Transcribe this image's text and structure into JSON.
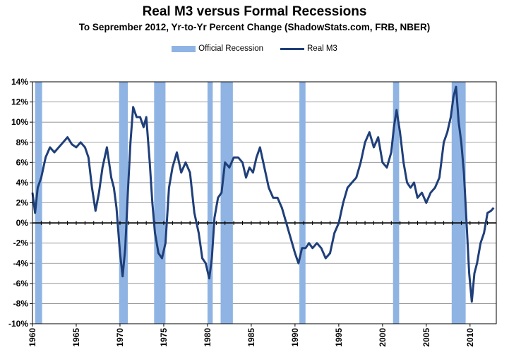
{
  "chart_data": {
    "type": "line",
    "title": "Real M3 versus Formal Recessions",
    "subtitle": "To Seprember 2012, Yr-to-Yr  Percent Change (ShadowStats.com, FRB, NBER)",
    "xlabel": "",
    "ylabel": "",
    "xlim": [
      1960,
      2013
    ],
    "ylim": [
      -10,
      14
    ],
    "y_ticks": [
      14,
      12,
      10,
      8,
      6,
      4,
      2,
      0,
      -2,
      -4,
      -6,
      -8,
      -10
    ],
    "y_tick_labels": [
      "14%",
      "12%",
      "10%",
      "8%",
      "6%",
      "4%",
      "2%",
      "0%",
      "-2%",
      "-4%",
      "-6%",
      "-8%",
      "-10%"
    ],
    "x_ticks": [
      1960,
      1965,
      1970,
      1975,
      1980,
      1985,
      1990,
      1995,
      2000,
      2005,
      2010
    ],
    "x_tick_labels": [
      "1960",
      "1965",
      "1970",
      "1975",
      "1980",
      "1985",
      "1990",
      "1995",
      "2000",
      "2005",
      "2010"
    ],
    "grid": "horizontal",
    "legend_position": "top",
    "legend": [
      "Official Recession",
      "Real M3"
    ],
    "recession_color": "#8fb4e3",
    "line_color": "#1f3f7a",
    "zero_line_color": "#000000",
    "recessions": [
      {
        "start": 1960.3,
        "end": 1961.1
      },
      {
        "start": 1969.9,
        "end": 1970.9
      },
      {
        "start": 1973.9,
        "end": 1975.2
      },
      {
        "start": 1980.0,
        "end": 1980.6
      },
      {
        "start": 1981.5,
        "end": 1982.9
      },
      {
        "start": 1990.5,
        "end": 1991.2
      },
      {
        "start": 2001.2,
        "end": 2001.9
      },
      {
        "start": 2007.9,
        "end": 2009.5
      }
    ],
    "series": [
      {
        "name": "Real M3",
        "x": [
          1960.0,
          1960.3,
          1960.6,
          1961.0,
          1961.5,
          1962.0,
          1962.5,
          1963.0,
          1963.5,
          1964.0,
          1964.5,
          1965.0,
          1965.5,
          1966.0,
          1966.4,
          1966.8,
          1967.2,
          1967.6,
          1968.0,
          1968.5,
          1969.0,
          1969.3,
          1969.6,
          1970.0,
          1970.3,
          1970.6,
          1970.9,
          1971.2,
          1971.5,
          1971.9,
          1972.3,
          1972.7,
          1973.0,
          1973.4,
          1973.7,
          1974.0,
          1974.4,
          1974.8,
          1975.2,
          1975.6,
          1976.0,
          1976.5,
          1977.0,
          1977.5,
          1978.0,
          1978.5,
          1979.0,
          1979.4,
          1979.8,
          1980.2,
          1980.5,
          1980.8,
          1981.2,
          1981.6,
          1982.0,
          1982.5,
          1983.0,
          1983.5,
          1984.0,
          1984.4,
          1984.8,
          1985.2,
          1985.6,
          1986.0,
          1986.5,
          1987.0,
          1987.5,
          1988.0,
          1988.5,
          1989.0,
          1989.5,
          1990.0,
          1990.4,
          1990.8,
          1991.2,
          1991.6,
          1992.0,
          1992.5,
          1993.0,
          1993.5,
          1994.0,
          1994.5,
          1995.0,
          1995.5,
          1996.0,
          1996.5,
          1997.0,
          1997.5,
          1998.0,
          1998.5,
          1999.0,
          1999.5,
          2000.0,
          2000.5,
          2001.0,
          2001.3,
          2001.6,
          2002.0,
          2002.4,
          2002.8,
          2003.2,
          2003.6,
          2004.0,
          2004.5,
          2005.0,
          2005.5,
          2006.0,
          2006.5,
          2007.0,
          2007.4,
          2007.8,
          2008.1,
          2008.4,
          2008.7,
          2009.0,
          2009.3,
          2009.6,
          2009.9,
          2010.2,
          2010.5,
          2010.8,
          2011.2,
          2011.6,
          2012.0,
          2012.4,
          2012.7
        ],
        "values": [
          3.0,
          1.0,
          3.5,
          4.5,
          6.5,
          7.5,
          7.0,
          7.5,
          8.0,
          8.5,
          7.8,
          7.5,
          8.0,
          7.5,
          6.5,
          3.5,
          1.2,
          3.0,
          5.5,
          7.5,
          4.5,
          3.5,
          1.5,
          -3.0,
          -5.3,
          -2.5,
          3.0,
          8.0,
          11.5,
          10.5,
          10.5,
          9.5,
          10.5,
          6.0,
          2.0,
          -1.0,
          -3.0,
          -3.5,
          -2.0,
          3.5,
          5.5,
          7.0,
          5.0,
          6.0,
          5.0,
          1.0,
          -1.0,
          -3.5,
          -4.0,
          -5.5,
          -3.5,
          0.5,
          2.5,
          3.0,
          6.0,
          5.5,
          6.5,
          6.5,
          6.0,
          4.5,
          5.5,
          5.0,
          6.5,
          7.5,
          5.5,
          3.5,
          2.5,
          2.5,
          1.5,
          0.0,
          -1.5,
          -3.0,
          -4.0,
          -2.5,
          -2.5,
          -2.0,
          -2.5,
          -2.0,
          -2.5,
          -3.5,
          -3.0,
          -1.0,
          0.0,
          2.0,
          3.5,
          4.0,
          4.5,
          6.0,
          8.0,
          9.0,
          7.5,
          8.5,
          6.0,
          5.5,
          7.0,
          9.5,
          11.2,
          9.0,
          6.0,
          4.0,
          3.5,
          4.0,
          2.5,
          3.0,
          2.0,
          3.0,
          3.5,
          4.5,
          8.0,
          9.0,
          10.5,
          12.5,
          13.5,
          10.0,
          8.0,
          5.0,
          0.0,
          -5.0,
          -7.8,
          -5.0,
          -4.0,
          -2.0,
          -1.0,
          1.0,
          1.2,
          1.5
        ]
      }
    ]
  }
}
